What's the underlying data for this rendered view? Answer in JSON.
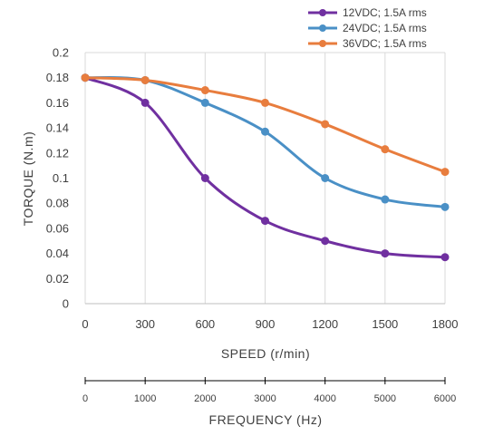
{
  "chart_data": {
    "type": "line",
    "xlabel": "SPEED (r/min)",
    "ylabel": "TORQUE (N.m)",
    "x2label": "FREQUENCY (Hz)",
    "x": [
      0,
      300,
      600,
      900,
      1200,
      1500,
      1800
    ],
    "x_tick_labels": [
      "0",
      "300",
      "600",
      "900",
      "1200",
      "1500",
      "1800"
    ],
    "x2_tick_labels": [
      "0",
      "1000",
      "2000",
      "3000",
      "4000",
      "5000",
      "6000"
    ],
    "xlim": [
      0,
      1800
    ],
    "ylim": [
      0,
      0.2
    ],
    "y_tick_values": [
      0,
      0.02,
      0.04,
      0.06,
      0.08,
      0.1,
      0.12,
      0.14,
      0.16,
      0.18,
      0.2
    ],
    "y_tick_labels": [
      "0",
      "0.02",
      "0.04",
      "0.06",
      "0.08",
      "0.1",
      "0.12",
      "0.14",
      "0.16",
      "0.18",
      "0.2"
    ],
    "grid": "vertical",
    "legend_position": "top-right",
    "series": [
      {
        "name": "12VDC; 1.5A rms",
        "color": "#7030A0",
        "values": [
          0.18,
          0.16,
          0.1,
          0.066,
          0.05,
          0.04,
          0.037
        ]
      },
      {
        "name": "24VDC; 1.5A rms",
        "color": "#4A90C6",
        "values": [
          0.18,
          0.178,
          0.16,
          0.137,
          0.1,
          0.083,
          0.077
        ]
      },
      {
        "name": "36VDC; 1.5A rms",
        "color": "#E87D3E",
        "values": [
          0.18,
          0.178,
          0.17,
          0.16,
          0.143,
          0.123,
          0.105
        ]
      }
    ]
  }
}
